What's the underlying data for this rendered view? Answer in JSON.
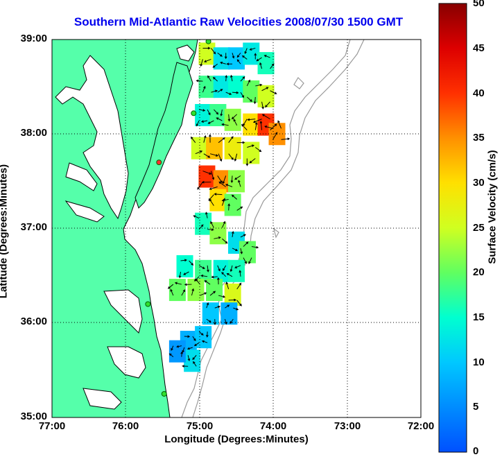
{
  "title": "Southern Mid-Atlantic Raw Velocities 2008/07/30 1500 GMT",
  "axes": {
    "xlabel": "Longitude (Degrees:Minutes)",
    "ylabel": "Latitude (Degrees:Minutes)",
    "xticks": [
      "77:00",
      "76:00",
      "75:00",
      "74:00",
      "73:00",
      "72:00"
    ],
    "yticks": [
      "39:00",
      "38:00",
      "37:00",
      "36:00",
      "35:00"
    ],
    "xlim": [
      -77,
      -72
    ],
    "ylim": [
      35,
      39
    ],
    "grid": "dotted"
  },
  "colorbar": {
    "label": "Surface Velocity (cm/s)",
    "ticks": [
      "50",
      "45",
      "40",
      "35",
      "30",
      "25",
      "20",
      "15",
      "10",
      "5",
      "0"
    ],
    "range": [
      0,
      50
    ]
  },
  "colors": {
    "land": "#55ffaa",
    "water": "#ffffff",
    "coast": "#000000",
    "bathymetry": "#999999",
    "title": "#0000ee",
    "vectors": "#000000"
  },
  "stations": [
    {
      "lon": -74.88,
      "lat": 38.98,
      "status": "ok"
    },
    {
      "lon": -75.08,
      "lat": 38.22,
      "status": "ok"
    },
    {
      "lon": -75.55,
      "lat": 37.7,
      "status": "down"
    },
    {
      "lon": -75.7,
      "lat": 36.2,
      "status": "ok"
    },
    {
      "lon": -75.48,
      "lat": 35.25,
      "status": "ok"
    }
  ],
  "chart_data": {
    "type": "heatmap",
    "description_unit": "cm/s",
    "cells": [
      {
        "lon": -74.9,
        "lat": 38.85,
        "v": 25
      },
      {
        "lon": -74.7,
        "lat": 38.8,
        "v": 12
      },
      {
        "lon": -74.5,
        "lat": 38.8,
        "v": 10
      },
      {
        "lon": -74.3,
        "lat": 38.85,
        "v": 13
      },
      {
        "lon": -74.1,
        "lat": 38.75,
        "v": 16
      },
      {
        "lon": -74.9,
        "lat": 38.5,
        "v": 18
      },
      {
        "lon": -74.7,
        "lat": 38.5,
        "v": 13
      },
      {
        "lon": -74.5,
        "lat": 38.5,
        "v": 15
      },
      {
        "lon": -74.3,
        "lat": 38.45,
        "v": 20
      },
      {
        "lon": -74.1,
        "lat": 38.4,
        "v": 25
      },
      {
        "lon": -74.95,
        "lat": 38.2,
        "v": 14
      },
      {
        "lon": -74.75,
        "lat": 38.2,
        "v": 18
      },
      {
        "lon": -74.55,
        "lat": 38.15,
        "v": 22
      },
      {
        "lon": -74.3,
        "lat": 38.1,
        "v": 30
      },
      {
        "lon": -74.1,
        "lat": 38.1,
        "v": 40
      },
      {
        "lon": -73.95,
        "lat": 38.0,
        "v": 35
      },
      {
        "lon": -75.0,
        "lat": 37.85,
        "v": 25
      },
      {
        "lon": -74.8,
        "lat": 37.85,
        "v": 32
      },
      {
        "lon": -74.55,
        "lat": 37.85,
        "v": 28
      },
      {
        "lon": -74.3,
        "lat": 37.8,
        "v": 25
      },
      {
        "lon": -74.9,
        "lat": 37.55,
        "v": 40
      },
      {
        "lon": -74.7,
        "lat": 37.5,
        "v": 35
      },
      {
        "lon": -74.5,
        "lat": 37.5,
        "v": 22
      },
      {
        "lon": -74.75,
        "lat": 37.3,
        "v": 30
      },
      {
        "lon": -74.55,
        "lat": 37.25,
        "v": 20
      },
      {
        "lon": -74.95,
        "lat": 37.05,
        "v": 16
      },
      {
        "lon": -74.75,
        "lat": 36.95,
        "v": 22
      },
      {
        "lon": -74.5,
        "lat": 36.85,
        "v": 12
      },
      {
        "lon": -74.35,
        "lat": 36.75,
        "v": 20
      },
      {
        "lon": -75.2,
        "lat": 36.6,
        "v": 15
      },
      {
        "lon": -74.95,
        "lat": 36.55,
        "v": 18
      },
      {
        "lon": -74.7,
        "lat": 36.55,
        "v": 14
      },
      {
        "lon": -74.5,
        "lat": 36.55,
        "v": 16
      },
      {
        "lon": -75.3,
        "lat": 36.35,
        "v": 20
      },
      {
        "lon": -75.05,
        "lat": 36.35,
        "v": 22
      },
      {
        "lon": -74.8,
        "lat": 36.35,
        "v": 20
      },
      {
        "lon": -74.55,
        "lat": 36.3,
        "v": 26
      },
      {
        "lon": -74.85,
        "lat": 36.1,
        "v": 10
      },
      {
        "lon": -74.6,
        "lat": 36.1,
        "v": 8
      },
      {
        "lon": -75.15,
        "lat": 35.8,
        "v": 8
      },
      {
        "lon": -74.95,
        "lat": 35.85,
        "v": 10
      },
      {
        "lon": -75.1,
        "lat": 35.6,
        "v": 12
      },
      {
        "lon": -75.3,
        "lat": 35.7,
        "v": 6
      }
    ]
  }
}
